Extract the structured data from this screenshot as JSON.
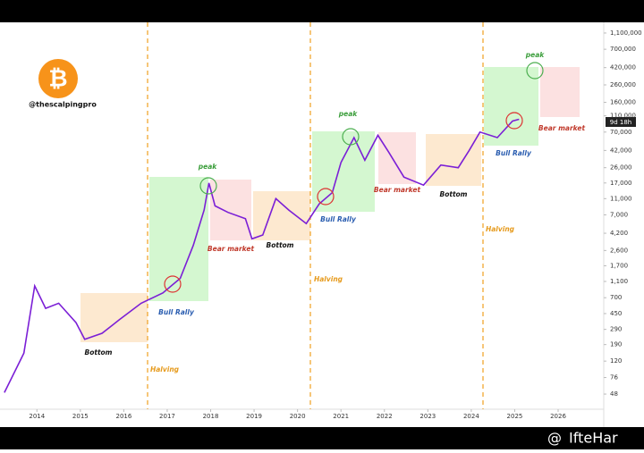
{
  "chart_data": {
    "type": "line",
    "yscale": "log",
    "grid": false,
    "handle": "@thescalpingpro",
    "price_tag": "9d 18h",
    "watermark": "IfteHar",
    "annotations": [
      "Bottom",
      "Bull Rally",
      "peak",
      "Bear market",
      "Bottom",
      "Bull Rally",
      "peak",
      "Bear market",
      "Bottom",
      "Bull Rally",
      "peak",
      "Bear market",
      "Halving",
      "Halving",
      "Halving"
    ],
    "series": [
      {
        "name": "BTC",
        "color": "#7b1fd6",
        "x": [
          2013.25,
          2013.7,
          2013.95,
          2014.2,
          2014.5,
          2014.9,
          2015.1,
          2015.5,
          2015.9,
          2016.4,
          2016.9,
          2017.3,
          2017.6,
          2017.85,
          2017.96,
          2018.1,
          2018.4,
          2018.8,
          2018.95,
          2019.2,
          2019.5,
          2019.8,
          2020.2,
          2020.5,
          2020.8,
          2021.0,
          2021.3,
          2021.55,
          2021.85,
          2022.1,
          2022.45,
          2022.9,
          2023.3,
          2023.7,
          2023.95,
          2024.2,
          2024.6,
          2024.95,
          2025.1
        ],
        "values": [
          50,
          150,
          970,
          520,
          600,
          350,
          220,
          260,
          380,
          600,
          800,
          1200,
          3000,
          8000,
          17000,
          9000,
          7500,
          6300,
          3600,
          4000,
          11000,
          8000,
          5500,
          9500,
          13000,
          30000,
          60000,
          32000,
          64000,
          40000,
          20000,
          16000,
          28000,
          26000,
          42000,
          70000,
          60000,
          95000,
          100000
        ]
      }
    ],
    "xlim": [
      2013.15,
      2027.05
    ],
    "xticks": [
      2014,
      2015,
      2016,
      2017,
      2018,
      2019,
      2020,
      2021,
      2022,
      2023,
      2024,
      2025,
      2026
    ],
    "ylim": [
      31.5,
      1480000
    ],
    "yticks": [
      {
        "value": 1100000,
        "label": "1,100,000"
      },
      {
        "value": 700000,
        "label": "700,000"
      },
      {
        "value": 420000,
        "label": "420,000"
      },
      {
        "value": 260000,
        "label": "260,000"
      },
      {
        "value": 160000,
        "label": "160,000"
      },
      {
        "value": 110000,
        "label": "110,000"
      },
      {
        "value": 70000,
        "label": "70,000"
      },
      {
        "value": 42000,
        "label": "42,000"
      },
      {
        "value": 26000,
        "label": "26,000"
      },
      {
        "value": 17000,
        "label": "17,000"
      },
      {
        "value": 11000,
        "label": "11,000"
      },
      {
        "value": 7000,
        "label": "7,000"
      },
      {
        "value": 4200,
        "label": "4,200"
      },
      {
        "value": 2600,
        "label": "2,600"
      },
      {
        "value": 1700,
        "label": "1,700"
      },
      {
        "value": 1100,
        "label": "1,100"
      },
      700,
      450,
      290,
      190,
      120,
      76,
      48
    ]
  }
}
